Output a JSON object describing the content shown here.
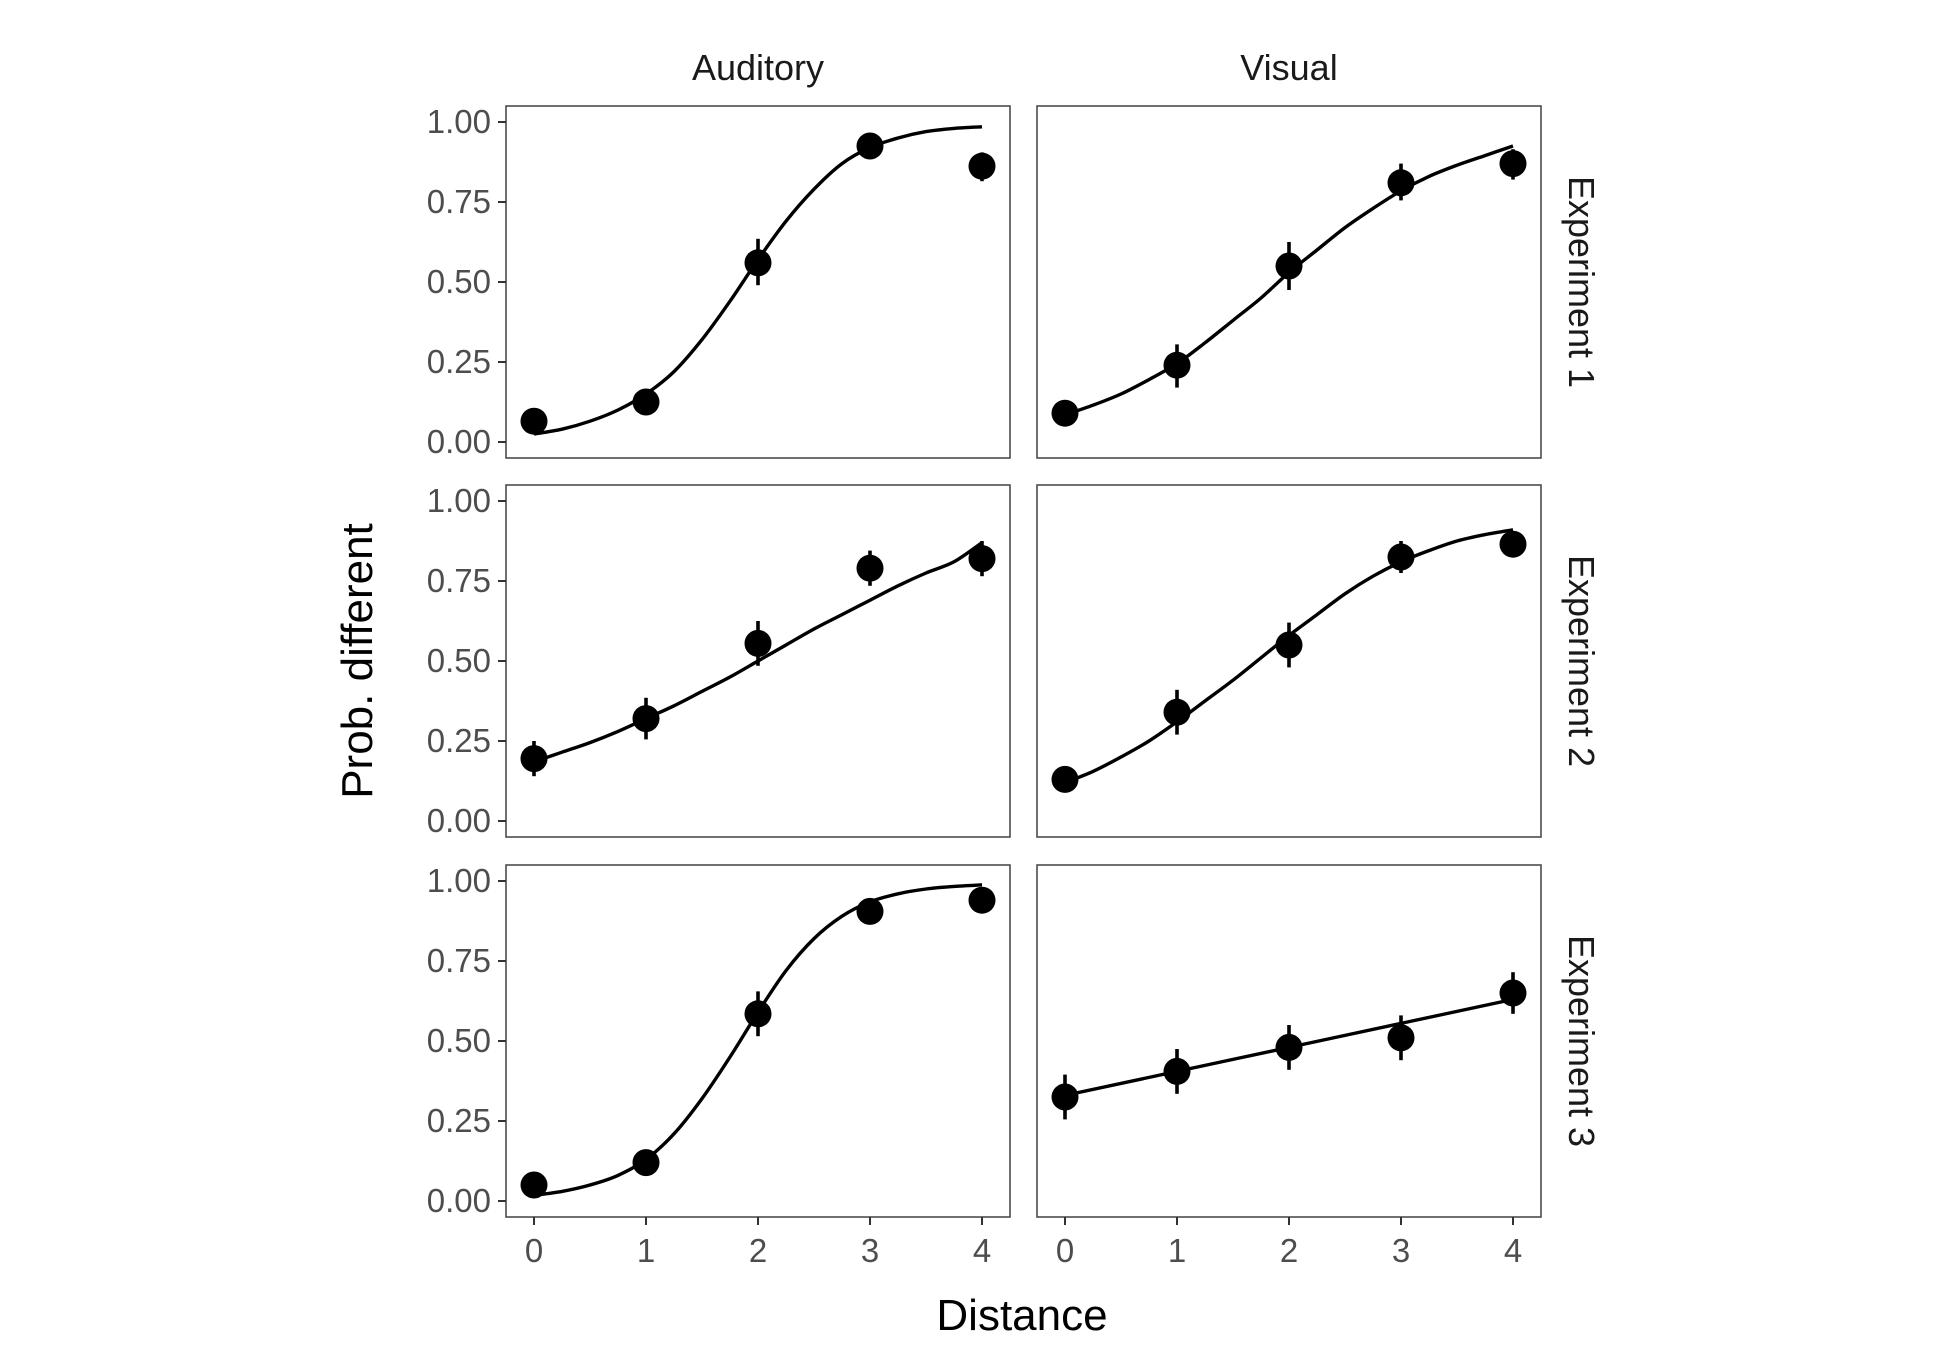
{
  "chart_data": {
    "type": "scatter",
    "xlabel": "Distance",
    "ylabel": "Prob. different",
    "x": [
      0,
      1,
      2,
      3,
      4
    ],
    "x_ticks": [
      "0",
      "1",
      "2",
      "3",
      "4"
    ],
    "y_ticks": [
      "0.00",
      "0.25",
      "0.50",
      "0.75",
      "1.00"
    ],
    "xlim": [
      -0.25,
      4.25
    ],
    "ylim": [
      -0.05,
      1.05
    ],
    "grid": false,
    "columns": [
      "Auditory",
      "Visual"
    ],
    "rows": [
      "Experiment 1",
      "Experiment 2",
      "Experiment 3"
    ],
    "panels": [
      {
        "column": "Auditory",
        "row": "Experiment 1",
        "points": [
          {
            "x": 0,
            "y": 0.065,
            "lo": 0.045,
            "hi": 0.085
          },
          {
            "x": 1,
            "y": 0.125,
            "lo": 0.09,
            "hi": 0.16
          },
          {
            "x": 2,
            "y": 0.56,
            "lo": 0.49,
            "hi": 0.635
          },
          {
            "x": 3,
            "y": 0.925,
            "lo": 0.905,
            "hi": 0.945
          },
          {
            "x": 4,
            "y": 0.862,
            "lo": 0.815,
            "hi": 0.905
          }
        ],
        "fit": {
          "x": [
            0,
            0.25,
            0.5,
            0.75,
            1,
            1.25,
            1.5,
            1.75,
            2,
            2.25,
            2.5,
            2.75,
            3,
            3.25,
            3.5,
            3.75,
            4
          ],
          "y": [
            0.025,
            0.04,
            0.065,
            0.1,
            0.15,
            0.22,
            0.32,
            0.44,
            0.57,
            0.69,
            0.79,
            0.87,
            0.92,
            0.95,
            0.97,
            0.98,
            0.985
          ]
        }
      },
      {
        "column": "Visual",
        "row": "Experiment 1",
        "points": [
          {
            "x": 0,
            "y": 0.09,
            "lo": 0.07,
            "hi": 0.11
          },
          {
            "x": 1,
            "y": 0.24,
            "lo": 0.17,
            "hi": 0.305
          },
          {
            "x": 2,
            "y": 0.55,
            "lo": 0.475,
            "hi": 0.625
          },
          {
            "x": 3,
            "y": 0.81,
            "lo": 0.755,
            "hi": 0.87
          },
          {
            "x": 4,
            "y": 0.87,
            "lo": 0.82,
            "hi": 0.915
          }
        ],
        "fit": {
          "x": [
            0,
            0.25,
            0.5,
            0.75,
            1,
            1.25,
            1.5,
            1.75,
            2,
            2.25,
            2.5,
            2.75,
            3,
            3.25,
            3.5,
            3.75,
            4
          ],
          "y": [
            0.085,
            0.115,
            0.15,
            0.195,
            0.245,
            0.31,
            0.38,
            0.45,
            0.53,
            0.6,
            0.67,
            0.73,
            0.785,
            0.83,
            0.865,
            0.895,
            0.925
          ]
        }
      },
      {
        "column": "Auditory",
        "row": "Experiment 2",
        "points": [
          {
            "x": 0,
            "y": 0.195,
            "lo": 0.14,
            "hi": 0.25
          },
          {
            "x": 1,
            "y": 0.32,
            "lo": 0.255,
            "hi": 0.385
          },
          {
            "x": 2,
            "y": 0.555,
            "lo": 0.485,
            "hi": 0.625
          },
          {
            "x": 3,
            "y": 0.79,
            "lo": 0.735,
            "hi": 0.845
          },
          {
            "x": 4,
            "y": 0.82,
            "lo": 0.765,
            "hi": 0.875
          }
        ],
        "fit": {
          "x": [
            0,
            0.25,
            0.5,
            0.75,
            1,
            1.25,
            1.5,
            1.75,
            2,
            2.25,
            2.5,
            2.75,
            3,
            3.25,
            3.5,
            3.75,
            4
          ],
          "y": [
            0.185,
            0.215,
            0.245,
            0.28,
            0.32,
            0.36,
            0.405,
            0.45,
            0.5,
            0.55,
            0.6,
            0.645,
            0.69,
            0.735,
            0.775,
            0.81,
            0.87
          ]
        }
      },
      {
        "column": "Visual",
        "row": "Experiment 2",
        "points": [
          {
            "x": 0,
            "y": 0.13,
            "lo": 0.1,
            "hi": 0.16
          },
          {
            "x": 1,
            "y": 0.34,
            "lo": 0.27,
            "hi": 0.41
          },
          {
            "x": 2,
            "y": 0.55,
            "lo": 0.48,
            "hi": 0.62
          },
          {
            "x": 3,
            "y": 0.825,
            "lo": 0.775,
            "hi": 0.875
          },
          {
            "x": 4,
            "y": 0.865,
            "lo": 0.825,
            "hi": 0.905
          }
        ],
        "fit": {
          "x": [
            0,
            0.25,
            0.5,
            0.75,
            1,
            1.25,
            1.5,
            1.75,
            2,
            2.25,
            2.5,
            2.75,
            3,
            3.25,
            3.5,
            3.75,
            4
          ],
          "y": [
            0.12,
            0.155,
            0.2,
            0.25,
            0.31,
            0.375,
            0.44,
            0.51,
            0.58,
            0.645,
            0.71,
            0.765,
            0.81,
            0.845,
            0.875,
            0.895,
            0.91
          ]
        }
      },
      {
        "column": "Auditory",
        "row": "Experiment 3",
        "points": [
          {
            "x": 0,
            "y": 0.05,
            "lo": 0.035,
            "hi": 0.065
          },
          {
            "x": 1,
            "y": 0.12,
            "lo": 0.095,
            "hi": 0.145
          },
          {
            "x": 2,
            "y": 0.585,
            "lo": 0.515,
            "hi": 0.655
          },
          {
            "x": 3,
            "y": 0.905,
            "lo": 0.885,
            "hi": 0.925
          },
          {
            "x": 4,
            "y": 0.94,
            "lo": 0.92,
            "hi": 0.96
          }
        ],
        "fit": {
          "x": [
            0,
            0.25,
            0.5,
            0.75,
            1,
            1.25,
            1.5,
            1.75,
            2,
            2.25,
            2.5,
            2.75,
            3,
            3.25,
            3.5,
            3.75,
            4
          ],
          "y": [
            0.018,
            0.03,
            0.05,
            0.08,
            0.13,
            0.21,
            0.32,
            0.45,
            0.59,
            0.72,
            0.82,
            0.89,
            0.935,
            0.96,
            0.975,
            0.983,
            0.988
          ]
        }
      },
      {
        "column": "Visual",
        "row": "Experiment 3",
        "points": [
          {
            "x": 0,
            "y": 0.325,
            "lo": 0.255,
            "hi": 0.395
          },
          {
            "x": 1,
            "y": 0.405,
            "lo": 0.335,
            "hi": 0.475
          },
          {
            "x": 2,
            "y": 0.48,
            "lo": 0.41,
            "hi": 0.55
          },
          {
            "x": 3,
            "y": 0.51,
            "lo": 0.44,
            "hi": 0.58
          },
          {
            "x": 4,
            "y": 0.65,
            "lo": 0.585,
            "hi": 0.715
          }
        ],
        "fit": {
          "x": [
            0,
            1,
            2,
            3,
            4
          ],
          "y": [
            0.33,
            0.405,
            0.48,
            0.555,
            0.63
          ]
        }
      }
    ]
  }
}
